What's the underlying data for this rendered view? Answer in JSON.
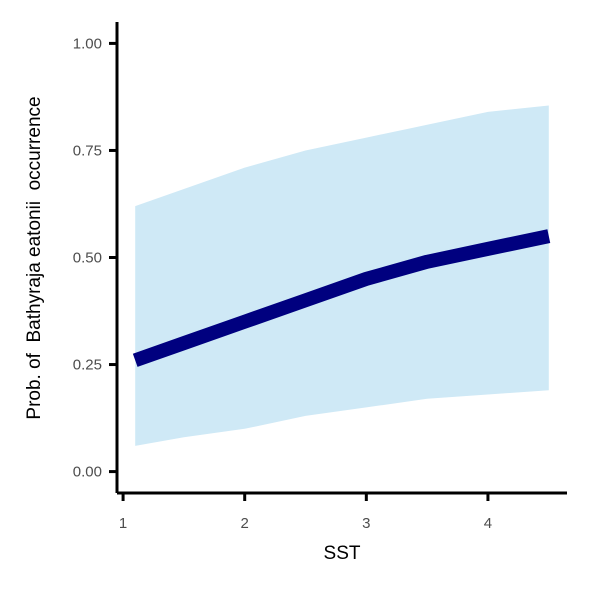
{
  "chart_data": {
    "type": "line",
    "title": "",
    "xlabel": "SST",
    "ylabel": "Prob. of  Bathyraja eatonii  occurrence",
    "xlim": [
      0.95,
      4.65
    ],
    "ylim": [
      -0.05,
      1.05
    ],
    "x_ticks": [
      {
        "value": 1,
        "label": "1"
      },
      {
        "value": 2,
        "label": "2"
      },
      {
        "value": 3,
        "label": "3"
      },
      {
        "value": 4,
        "label": "4"
      }
    ],
    "y_ticks": [
      {
        "value": 0.0,
        "label": "0.00"
      },
      {
        "value": 0.25,
        "label": "0.25"
      },
      {
        "value": 0.5,
        "label": "0.50"
      },
      {
        "value": 0.75,
        "label": "0.75"
      },
      {
        "value": 1.0,
        "label": "1.00"
      }
    ],
    "grid": false,
    "colors": {
      "line": "#00007f",
      "ribbon": "#cfe9f6",
      "axis": "#000000"
    },
    "series": [
      {
        "x": [
          1.1,
          1.5,
          2.0,
          2.5,
          3.0,
          3.5,
          4.0,
          4.5
        ],
        "y": [
          0.26,
          0.3,
          0.35,
          0.4,
          0.45,
          0.49,
          0.52,
          0.55
        ],
        "lower": [
          0.06,
          0.08,
          0.1,
          0.13,
          0.15,
          0.17,
          0.18,
          0.19
        ],
        "upper": [
          0.62,
          0.66,
          0.71,
          0.75,
          0.78,
          0.81,
          0.84,
          0.855
        ]
      }
    ]
  }
}
